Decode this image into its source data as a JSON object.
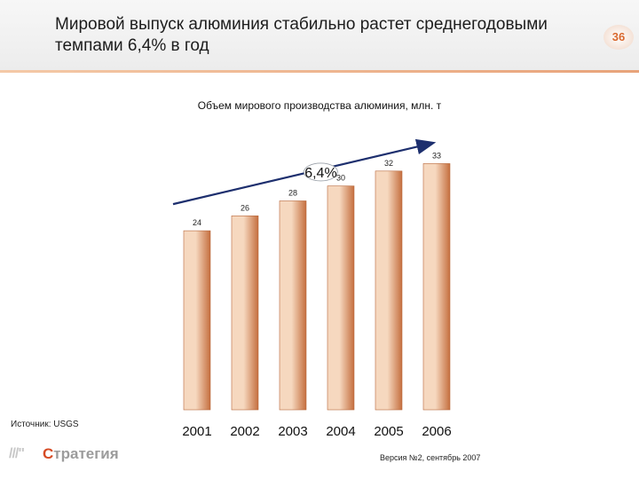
{
  "header": {
    "title": "Мировой выпуск алюминия стабильно растет среднегодовыми темпами 6,4% в год",
    "page_number": "36"
  },
  "footer": {
    "source": "Источник: USGS",
    "version": "Версия №2, сентябрь 2007",
    "logo_text_rest": "тратегия",
    "logo_text_first": "С"
  },
  "colors": {
    "bar_light": "#f6d8bf",
    "bar_dark": "#c56f3f",
    "header_accent": "#e8a37a"
  },
  "chart_data": {
    "type": "bar",
    "title": "Объем мирового производства алюминия, млн. т",
    "categories": [
      "2001",
      "2002",
      "2003",
      "2004",
      "2005",
      "2006"
    ],
    "values": [
      24,
      26,
      28,
      30,
      32,
      33
    ],
    "ylim": [
      0,
      34
    ],
    "grid": false,
    "annotations": [
      {
        "type": "trend-arrow",
        "from": "2001",
        "to": "2006",
        "label": "6,4%"
      }
    ]
  }
}
